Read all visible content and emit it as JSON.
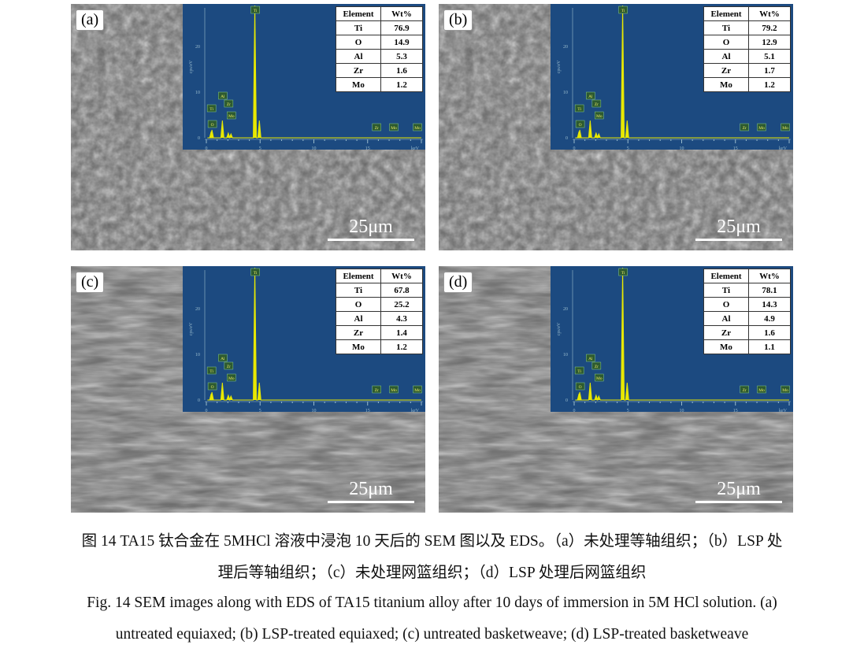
{
  "panels": [
    {
      "label": "(a)",
      "scale": "25μm",
      "table": {
        "headers": [
          "Element",
          "Wt%"
        ],
        "rows": [
          [
            "Ti",
            "76.9"
          ],
          [
            "O",
            "14.9"
          ],
          [
            "Al",
            "5.3"
          ],
          [
            "Zr",
            "1.6"
          ],
          [
            "Mo",
            "1.2"
          ]
        ]
      }
    },
    {
      "label": "(b)",
      "scale": "25μm",
      "table": {
        "headers": [
          "Element",
          "Wt%"
        ],
        "rows": [
          [
            "Ti",
            "79.2"
          ],
          [
            "O",
            "12.9"
          ],
          [
            "Al",
            "5.1"
          ],
          [
            "Zr",
            "1.7"
          ],
          [
            "Mo",
            "1.2"
          ]
        ]
      }
    },
    {
      "label": "(c)",
      "scale": "25μm",
      "table": {
        "headers": [
          "Element",
          "Wt%"
        ],
        "rows": [
          [
            "Ti",
            "67.8"
          ],
          [
            "O",
            "25.2"
          ],
          [
            "Al",
            "4.3"
          ],
          [
            "Zr",
            "1.4"
          ],
          [
            "Mo",
            "1.2"
          ]
        ]
      }
    },
    {
      "label": "(d)",
      "scale": "25μm",
      "table": {
        "headers": [
          "Element",
          "Wt%"
        ],
        "rows": [
          [
            "Ti",
            "78.1"
          ],
          [
            "O",
            "14.3"
          ],
          [
            "Al",
            "4.9"
          ],
          [
            "Zr",
            "1.6"
          ],
          [
            "Mo",
            "1.1"
          ]
        ]
      }
    }
  ],
  "spectrum": {
    "xlabel": "keV",
    "ylabel": "cps/eV",
    "xticks": [
      "0",
      "5",
      "10",
      "15"
    ],
    "yticks": [
      "0",
      "10",
      "20"
    ],
    "peak_labels": [
      "Ti",
      "O",
      "Al",
      "Zr",
      "Mo",
      "Ti",
      "Zr",
      "Mo",
      "Mo"
    ],
    "colors": {
      "line": "#e8e800",
      "bg": "#1c4a80"
    }
  },
  "caption": {
    "zh_line1": "图 14 TA15 钛合金在 5MHCl 溶液中浸泡 10 天后的 SEM 图以及 EDS。（a）未处理等轴组织；（b）LSP 处",
    "zh_line2": "理后等轴组织；（c）未处理网篮组织；（d）LSP 处理后网篮组织",
    "en_line1": "Fig. 14 SEM images along with EDS of TA15 titanium alloy after 10 days of immersion in 5M HCl solution. (a)",
    "en_line2": "untreated equiaxed; (b) LSP-treated equiaxed; (c) untreated basketweave; (d) LSP-treated basketweave"
  }
}
